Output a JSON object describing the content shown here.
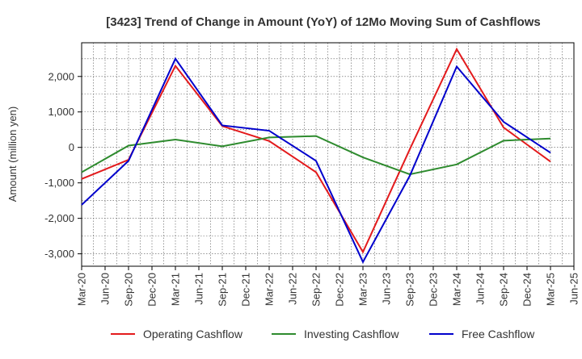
{
  "chart_data": {
    "type": "line",
    "title": "[3423]  Trend of Change in Amount (YoY) of 12Mo Moving Sum of Cashflows",
    "xlabel": "",
    "ylabel": "Amount (million yen)",
    "categories": [
      "Mar-20",
      "Jun-20",
      "Sep-20",
      "Dec-20",
      "Mar-21",
      "Jun-21",
      "Sep-21",
      "Dec-21",
      "Mar-22",
      "Jun-22",
      "Sep-22",
      "Dec-22",
      "Mar-23",
      "Jun-23",
      "Sep-23",
      "Dec-23",
      "Mar-24",
      "Jun-24",
      "Sep-24",
      "Dec-24",
      "Mar-25",
      "Jun-25"
    ],
    "yticks": [
      2000,
      1000,
      0,
      -1000,
      -2000,
      -3000
    ],
    "ytick_labels": [
      "2,000",
      "1,000",
      "0",
      "-1,000",
      "-2,000",
      "-3,000"
    ],
    "ylim": [
      -3350,
      2950
    ],
    "grid": true,
    "legend_position": "bottom",
    "series": [
      {
        "name": "Operating Cashflow",
        "color": "#e31a1c",
        "x": [
          "Mar-20",
          "Sep-20",
          "Mar-21",
          "Sep-21",
          "Mar-22",
          "Sep-22",
          "Mar-23",
          "Sep-23",
          "Mar-24",
          "Sep-24",
          "Mar-25"
        ],
        "values": [
          -890,
          -350,
          2300,
          600,
          180,
          -700,
          -2950,
          -50,
          2770,
          560,
          -400
        ]
      },
      {
        "name": "Investing Cashflow",
        "color": "#2e8b2e",
        "x": [
          "Mar-20",
          "Sep-20",
          "Mar-21",
          "Sep-21",
          "Mar-22",
          "Sep-22",
          "Mar-23",
          "Sep-23",
          "Mar-24",
          "Sep-24",
          "Mar-25"
        ],
        "values": [
          -700,
          50,
          220,
          30,
          280,
          320,
          -280,
          -760,
          -480,
          190,
          250
        ]
      },
      {
        "name": "Free Cashflow",
        "color": "#0000cc",
        "x": [
          "Mar-20",
          "Sep-20",
          "Mar-21",
          "Sep-21",
          "Mar-22",
          "Sep-22",
          "Mar-23",
          "Sep-23",
          "Mar-24",
          "Sep-24",
          "Mar-25"
        ],
        "values": [
          -1620,
          -380,
          2500,
          620,
          470,
          -380,
          -3230,
          -800,
          2280,
          720,
          -150
        ]
      }
    ]
  }
}
